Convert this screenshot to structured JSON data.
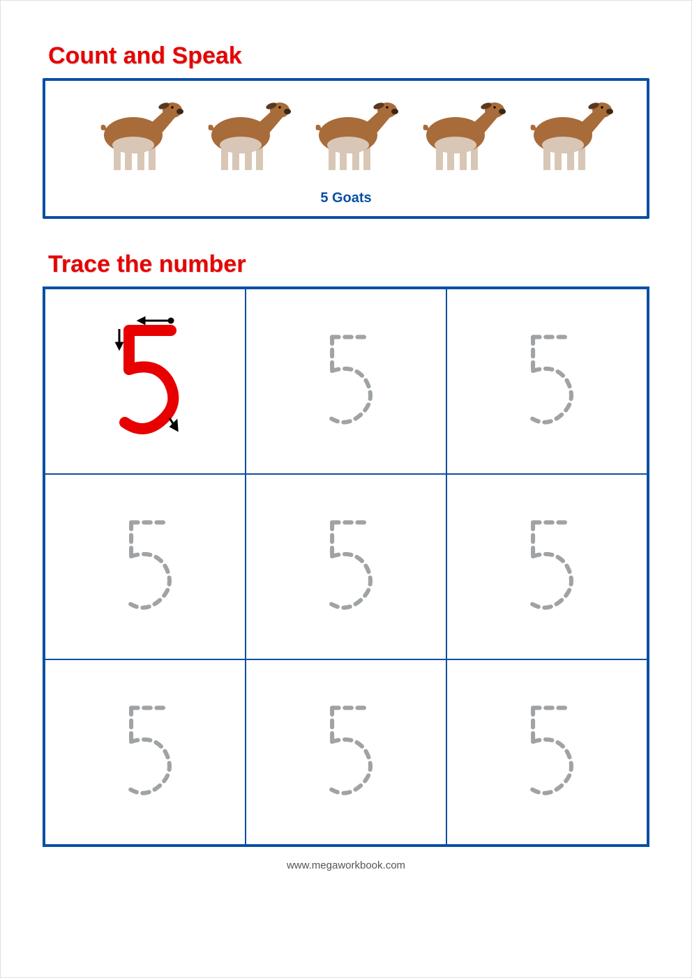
{
  "colors": {
    "heading": "#e80000",
    "box_border": "#0a4fa3",
    "count_label": "#0a4fa3",
    "grid_border": "#0a4fa3",
    "solid_five": "#e80000",
    "dashed_five": "#9fa3a6",
    "arrow": "#000000",
    "goat_body": "#a86b3a",
    "goat_belly": "#d8c7b6",
    "goat_leg": "#d8c7b6",
    "goat_ear": "#5a3820",
    "goat_nose": "#3a2614",
    "footer": "#555555",
    "page_border": "#e0e0e0"
  },
  "section1": {
    "title": "Count and Speak",
    "count": 5,
    "item_name": "Goats",
    "label": "5 Goats"
  },
  "section2": {
    "title": "Trace the number",
    "number": 5,
    "grid_rows": 3,
    "grid_cols": 3,
    "solid_cell_index": 0
  },
  "footer": "www.megaworkbook.com"
}
